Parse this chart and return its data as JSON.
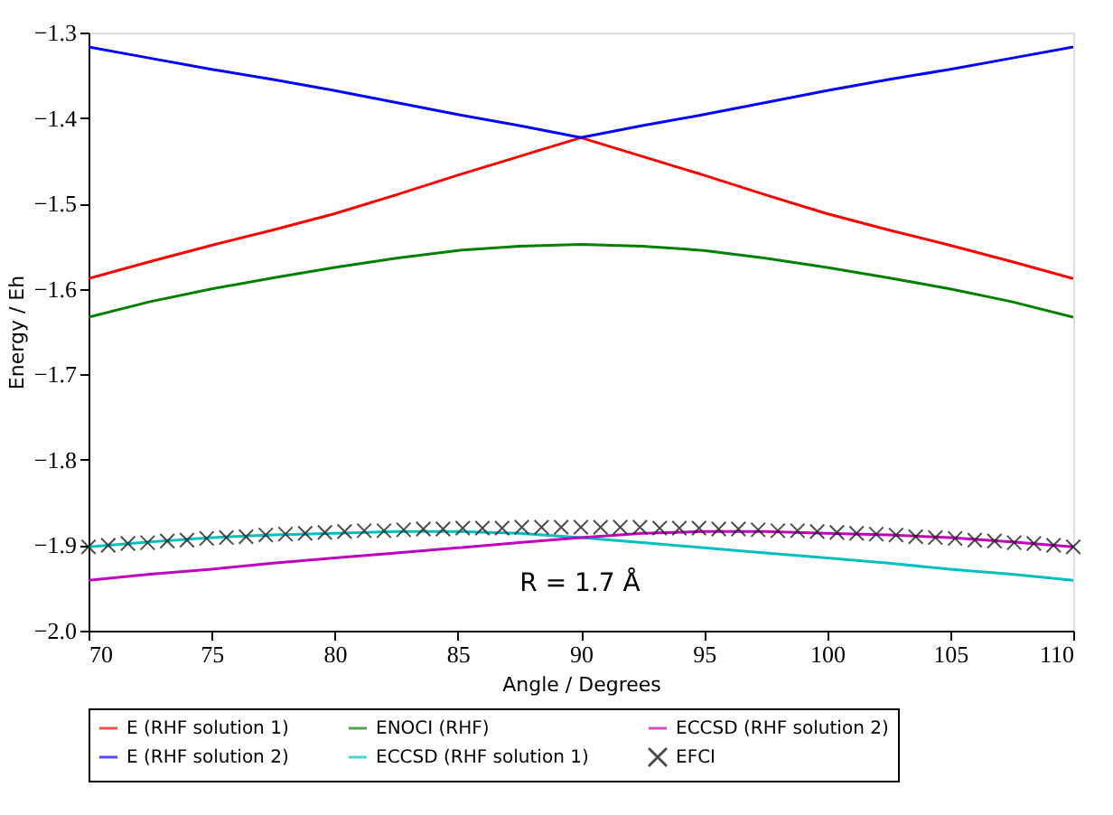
{
  "chart_data": {
    "type": "line",
    "xlabel": "Angle / Degrees",
    "ylabel": "Energy / Eh",
    "xlim": [
      70,
      110
    ],
    "xticks": [
      70,
      75,
      80,
      85,
      90,
      95,
      100,
      105,
      110
    ],
    "ylim": [
      -2.0,
      -1.3
    ],
    "yticks": [
      {
        "value": -2.0,
        "label": "−2.0"
      },
      -1.9,
      -1.8,
      -1.7,
      -1.6,
      -1.5,
      -1.4,
      -1.3
    ],
    "grid": false,
    "legend": "bottom",
    "marker": "none",
    "line_style": "solid",
    "annotations": [
      "R = 1.7 Å"
    ],
    "series": [
      {
        "name": "E (RHF solution 1)",
        "color": "#ff0000",
        "x": [
          70,
          72.5,
          75,
          77.5,
          80,
          82.5,
          85,
          87.5,
          90,
          92.5,
          95,
          97.5,
          100,
          102.5,
          105,
          107.5,
          110
        ],
        "values": [
          -1.588,
          -1.568,
          -1.549,
          -1.531,
          -1.512,
          -1.49,
          -1.467,
          -1.445,
          -1.423,
          -1.445,
          -1.467,
          -1.49,
          -1.512,
          -1.531,
          -1.549,
          -1.568,
          -1.588
        ]
      },
      {
        "name": "E (RHF solution 2)",
        "color": "#0000ff",
        "x": [
          70,
          72.5,
          75,
          77.5,
          80,
          82.5,
          85,
          87.5,
          90,
          92.5,
          95,
          97.5,
          100,
          102.5,
          105,
          107.5,
          110
        ],
        "values": [
          -1.317,
          -1.33,
          -1.343,
          -1.355,
          -1.368,
          -1.382,
          -1.396,
          -1.409,
          -1.423,
          -1.409,
          -1.396,
          -1.382,
          -1.368,
          -1.355,
          -1.343,
          -1.33,
          -1.317
        ]
      },
      {
        "name": "ENOCI (RHF)",
        "color": "#008000",
        "x": [
          70,
          72.5,
          75,
          77.5,
          80,
          82.5,
          85,
          87.5,
          90,
          92.5,
          95,
          97.5,
          100,
          102.5,
          105,
          107.5,
          110
        ],
        "values": [
          -1.633,
          -1.615,
          -1.6,
          -1.587,
          -1.575,
          -1.564,
          -1.555,
          -1.55,
          -1.548,
          -1.55,
          -1.555,
          -1.564,
          -1.575,
          -1.587,
          -1.6,
          -1.615,
          -1.633
        ]
      },
      {
        "name": "ECCSD (RHF solution 1)",
        "color": "#00bfbf",
        "x": [
          70,
          72.5,
          75,
          77.5,
          80,
          82.5,
          85,
          87.5,
          90,
          92.5,
          95,
          97.5,
          100,
          102.5,
          105,
          107.5,
          110
        ],
        "values": [
          -1.902,
          -1.896,
          -1.891,
          -1.888,
          -1.886,
          -1.884,
          -1.884,
          -1.886,
          -1.891,
          -1.897,
          -1.903,
          -1.909,
          -1.915,
          -1.921,
          -1.928,
          -1.934,
          -1.941
        ]
      },
      {
        "name": "ECCSD (RHF solution 2)",
        "color": "#bf00bf",
        "x": [
          70,
          72.5,
          75,
          77.5,
          80,
          82.5,
          85,
          87.5,
          90,
          92.5,
          95,
          97.5,
          100,
          102.5,
          105,
          107.5,
          110
        ],
        "values": [
          -1.941,
          -1.934,
          -1.928,
          -1.921,
          -1.915,
          -1.909,
          -1.903,
          -1.897,
          -1.891,
          -1.886,
          -1.884,
          -1.884,
          -1.886,
          -1.888,
          -1.891,
          -1.896,
          -1.902
        ]
      },
      {
        "name": "EFCI",
        "color": "#000000",
        "type": "scatter",
        "marker": "cross",
        "x": [
          70,
          70.8,
          71.6,
          72.4,
          73.2,
          74,
          74.8,
          75.6,
          76.4,
          77.2,
          78,
          78.8,
          79.6,
          80.4,
          81.2,
          82,
          82.8,
          83.6,
          84.4,
          85.2,
          86,
          86.8,
          87.6,
          88.4,
          89.2,
          90,
          90.8,
          91.6,
          92.4,
          93.2,
          94,
          94.8,
          95.6,
          96.4,
          97.2,
          98,
          98.8,
          99.6,
          100.4,
          101.2,
          102,
          102.8,
          103.6,
          104.4,
          105.2,
          106,
          106.8,
          107.6,
          108.4,
          109.2,
          110
        ],
        "values": [
          -1.902,
          -1.9,
          -1.898,
          -1.897,
          -1.895,
          -1.894,
          -1.892,
          -1.891,
          -1.89,
          -1.888,
          -1.887,
          -1.886,
          -1.885,
          -1.884,
          -1.883,
          -1.883,
          -1.882,
          -1.881,
          -1.881,
          -1.88,
          -1.88,
          -1.88,
          -1.879,
          -1.879,
          -1.879,
          -1.879,
          -1.879,
          -1.879,
          -1.879,
          -1.88,
          -1.88,
          -1.88,
          -1.881,
          -1.881,
          -1.882,
          -1.883,
          -1.883,
          -1.884,
          -1.885,
          -1.886,
          -1.887,
          -1.888,
          -1.89,
          -1.891,
          -1.892,
          -1.894,
          -1.895,
          -1.897,
          -1.898,
          -1.9,
          -1.902
        ]
      }
    ]
  }
}
